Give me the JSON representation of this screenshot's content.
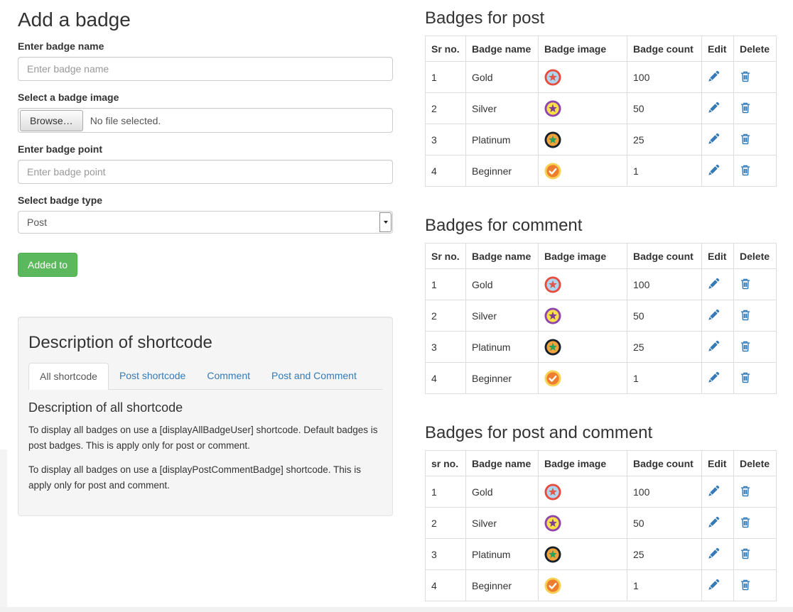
{
  "form": {
    "title": "Add a badge",
    "name_label": "Enter badge name",
    "name_placeholder": "Enter badge name",
    "image_label": "Select a badge image",
    "file_button": "Browse…",
    "file_status": "No file selected.",
    "point_label": "Enter badge point",
    "point_placeholder": "Enter badge point",
    "type_label": "Select badge type",
    "type_value": "Post",
    "submit_label": "Added to"
  },
  "shortcode_panel": {
    "title": "Description of shortcode",
    "tabs": [
      {
        "label": "All shortcode",
        "active": true
      },
      {
        "label": "Post shortcode",
        "active": false
      },
      {
        "label": "Comment",
        "active": false
      },
      {
        "label": "Post and Comment",
        "active": false
      }
    ],
    "content_title": "Description of all shortcode",
    "paragraphs": [
      "To display all badges on use a [displayAllBadgeUser] shortcode. Default badges is post badges. This is apply only for post or comment.",
      "To display all badges on use a [displayPostCommentBadge] shortcode. This is apply only for post and comment."
    ]
  },
  "tables": [
    {
      "title": "Badges for post",
      "headers": [
        "Sr no.",
        "Badge name",
        "Badge image",
        "Badge count",
        "Edit",
        "Delete"
      ],
      "rows": [
        {
          "sr": "1",
          "name": "Gold",
          "badge": "gold",
          "count": "100"
        },
        {
          "sr": "2",
          "name": "Silver",
          "badge": "silver",
          "count": "50"
        },
        {
          "sr": "3",
          "name": "Platinum",
          "badge": "platinum",
          "count": "25"
        },
        {
          "sr": "4",
          "name": "Beginner",
          "badge": "beginner",
          "count": "1"
        }
      ]
    },
    {
      "title": "Badges for comment",
      "headers": [
        "Sr no.",
        "Badge name",
        "Badge image",
        "Badge count",
        "Edit",
        "Delete"
      ],
      "rows": [
        {
          "sr": "1",
          "name": "Gold",
          "badge": "gold",
          "count": "100"
        },
        {
          "sr": "2",
          "name": "Silver",
          "badge": "silver",
          "count": "50"
        },
        {
          "sr": "3",
          "name": "Platinum",
          "badge": "platinum",
          "count": "25"
        },
        {
          "sr": "4",
          "name": "Beginner",
          "badge": "beginner",
          "count": "1"
        }
      ]
    },
    {
      "title": "Badges for post and comment",
      "headers": [
        "sr no.",
        "Badge name",
        "Badge image",
        "Badge count",
        "Edit",
        "Delete"
      ],
      "rows": [
        {
          "sr": "1",
          "name": "Gold",
          "badge": "gold",
          "count": "100"
        },
        {
          "sr": "2",
          "name": "Silver",
          "badge": "silver",
          "count": "50"
        },
        {
          "sr": "3",
          "name": "Platinum",
          "badge": "platinum",
          "count": "25"
        },
        {
          "sr": "4",
          "name": "Beginner",
          "badge": "beginner",
          "count": "1"
        }
      ]
    }
  ],
  "badges": {
    "gold": {
      "ring": "#e74c3c",
      "fill": "#aed6f1",
      "glyph": "star",
      "glyph_color": "#e2574c"
    },
    "silver": {
      "ring": "#8e44ad",
      "fill": "#f8e04a",
      "glyph": "star",
      "glyph_color": "#7d3c98"
    },
    "platinum": {
      "ring": "#17202a",
      "fill": "#f3a33c",
      "glyph": "star",
      "glyph_color": "#27a35b"
    },
    "beginner": {
      "ring": "#f7d154",
      "fill": "#ee7e2d",
      "glyph": "check",
      "glyph_color": "#ffffff"
    }
  },
  "icons": {
    "edit_icon": "pencil-icon",
    "delete_icon": "trash-icon",
    "edit_color": "#337ab7",
    "delete_color": "#337ab7"
  },
  "colors": {
    "link_blue": "#337ab7",
    "button_green": "#5cb85c",
    "button_green_border": "#4cae4c",
    "table_border": "#dddddd",
    "panel_bg": "#f5f5f5",
    "footer_bar": "#f1f1f1"
  }
}
